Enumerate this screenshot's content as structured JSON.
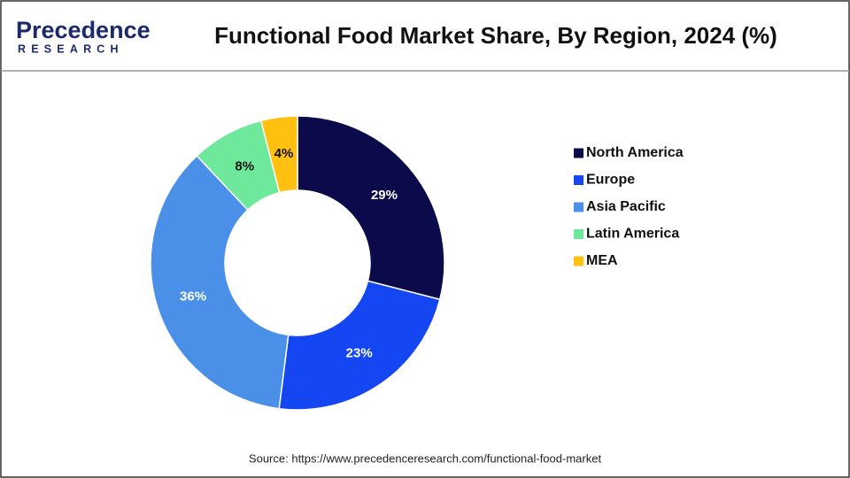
{
  "logo": {
    "name": "Precedence",
    "tagline": "RESEARCH"
  },
  "chart_data": {
    "type": "donut",
    "title": "Functional Food Market Share, By Region, 2024 (%)",
    "categories": [
      "North America",
      "Europe",
      "Asia Pacific",
      "Latin America",
      "MEA"
    ],
    "values": [
      29,
      23,
      36,
      8,
      4
    ],
    "value_labels": [
      "29%",
      "23%",
      "36%",
      "8%",
      "4%"
    ],
    "colors": [
      "#0b0b4b",
      "#1446f2",
      "#4a90e8",
      "#6ee89a",
      "#ffc010"
    ],
    "legend": "right"
  },
  "source": "Source: https://www.precedenceresearch.com/functional-food-market"
}
